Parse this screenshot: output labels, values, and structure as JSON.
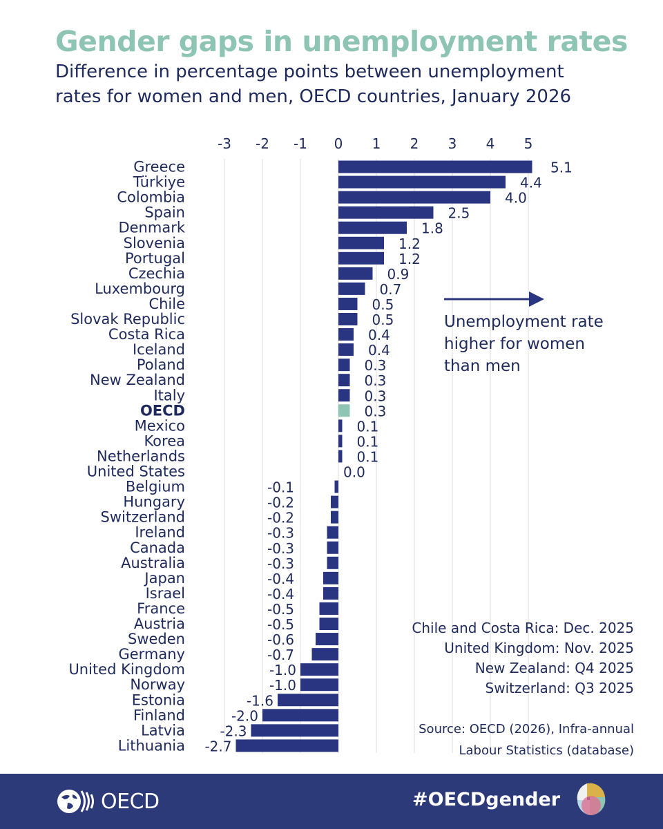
{
  "header": {
    "title": "Gender gaps in unemployment rates",
    "subtitle": "Difference in percentage points between unemployment rates for women and men, OECD countries, January 2026"
  },
  "colors": {
    "bar": "#293580",
    "highlight_bar": "#8ec4b3",
    "title": "#8ec4b3",
    "text": "#1f2a5c",
    "footer": "#2c3a7a"
  },
  "chart_data": {
    "type": "bar",
    "orientation": "horizontal",
    "title": "Gender gaps in unemployment rates",
    "xlabel": "",
    "ylabel": "",
    "xlim": [
      -3.3,
      5.4
    ],
    "x_ticks": [
      -3,
      -2,
      -1,
      0,
      1,
      2,
      3,
      4,
      5
    ],
    "x_tick_labels": [
      "-3",
      "-2",
      "-1",
      "0",
      "1",
      "2",
      "3",
      "4",
      "5"
    ],
    "grid": true,
    "highlight": "OECD",
    "categories": [
      "Greece",
      "Türkiye",
      "Colombia",
      "Spain",
      "Denmark",
      "Slovenia",
      "Portugal",
      "Czechia",
      "Luxembourg",
      "Chile",
      "Slovak Republic",
      "Costa Rica",
      "Iceland",
      "Poland",
      "New Zealand",
      "Italy",
      "OECD",
      "Mexico",
      "Korea",
      "Netherlands",
      "United States",
      "Belgium",
      "Hungary",
      "Switzerland",
      "Ireland",
      "Canada",
      "Australia",
      "Japan",
      "Israel",
      "France",
      "Austria",
      "Sweden",
      "Germany",
      "United Kingdom",
      "Norway",
      "Estonia",
      "Finland",
      "Latvia",
      "Lithuania"
    ],
    "values": [
      5.1,
      4.4,
      4.0,
      2.5,
      1.8,
      1.2,
      1.2,
      0.9,
      0.7,
      0.5,
      0.5,
      0.4,
      0.4,
      0.3,
      0.3,
      0.3,
      0.3,
      0.1,
      0.1,
      0.1,
      0.0,
      -0.1,
      -0.2,
      -0.2,
      -0.3,
      -0.3,
      -0.3,
      -0.4,
      -0.4,
      -0.5,
      -0.5,
      -0.6,
      -0.7,
      -1.0,
      -1.0,
      -1.6,
      -2.0,
      -2.3,
      -2.7
    ],
    "value_labels": [
      "5.1",
      "4.4",
      "4.0",
      "2.5",
      "1.8",
      "1.2",
      "1.2",
      "0.9",
      "0.7",
      "0.5",
      "0.5",
      "0.4",
      "0.4",
      "0.3",
      "0.3",
      "0.3",
      "0.3",
      "0.1",
      "0.1",
      "0.1",
      "0.0",
      "-0.1",
      "-0.2",
      "-0.2",
      "-0.3",
      "-0.3",
      "-0.3",
      "-0.4",
      "-0.4",
      "-0.5",
      "-0.5",
      "-0.6",
      "-0.7",
      "-1.0",
      "-1.0",
      "-1.6",
      "-2.0",
      "-2.3",
      "-2.7"
    ],
    "annotation": "Unemployment rate higher for women than men"
  },
  "notes": [
    "Chile and Costa Rica: Dec. 2025",
    "United Kingdom: Nov. 2025",
    "New Zealand: Q4 2025",
    "Switzerland: Q3 2025"
  ],
  "source": {
    "line1": "Source: OECD (2026), Infra-annual",
    "line2": "Labour Statistics (database)"
  },
  "footer": {
    "logo_text": "OECD",
    "hashtag": "#OECDgender"
  }
}
